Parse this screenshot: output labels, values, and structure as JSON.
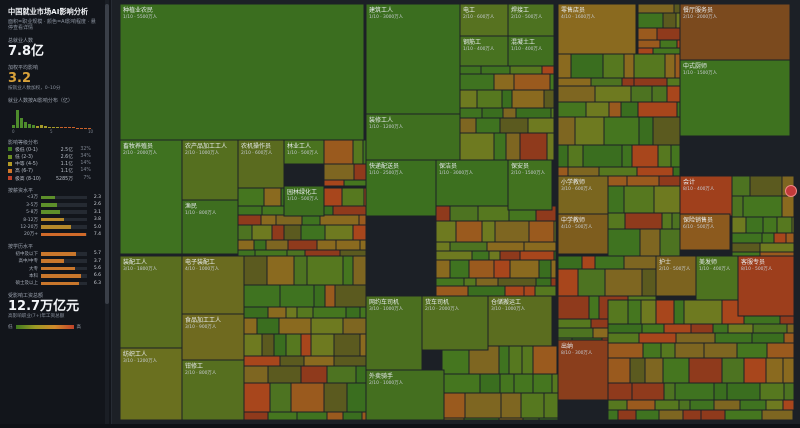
{
  "sidebar": {
    "title": "中国就业市场AI影响分析",
    "subtitle": "面积=职业规模 · 颜色=AI影响程度 · 悬停查看详情",
    "total_label": "总就业人数",
    "total_value": "7.8亿",
    "avg_label": "加权平均影响",
    "avg_value": "3.2",
    "avg_note": "按就业人数加权，0–10分",
    "hist_label": "就业人数按AI影响分布（亿）",
    "hist_ticks": [
      "0",
      "5",
      "10"
    ],
    "dist_label": "影响等级分布",
    "dist": [
      {
        "name": "极低 (0-1)",
        "count": "2.5亿",
        "pct": "32%",
        "color": "#3f7a1f"
      },
      {
        "name": "低 (2-3)",
        "count": "2.6亿",
        "pct": "34%",
        "color": "#6e8f22"
      },
      {
        "name": "中等 (4-5)",
        "count": "1.1亿",
        "pct": "14%",
        "color": "#b39a25"
      },
      {
        "name": "高 (6-7)",
        "count": "1.1亿",
        "pct": "14%",
        "color": "#d1772b"
      },
      {
        "name": "极高 (8-10)",
        "count": "5285万",
        "pct": "7%",
        "color": "#c0432a"
      }
    ],
    "salary_label": "按薪资水平",
    "salary": [
      {
        "label": "<3万",
        "value": "2.3",
        "frac": 0.3
      },
      {
        "label": "3-5万",
        "value": "2.6",
        "frac": 0.34
      },
      {
        "label": "5-8万",
        "value": "3.1",
        "frac": 0.41
      },
      {
        "label": "8-12万",
        "value": "3.8",
        "frac": 0.5
      },
      {
        "label": "12-20万",
        "value": "5.0",
        "frac": 0.66
      },
      {
        "label": "20万+",
        "value": "7.4",
        "frac": 0.97
      }
    ],
    "edu_label": "按学历水平",
    "edu": [
      {
        "label": "初中及以下",
        "value": "5.7",
        "frac": 0.75
      },
      {
        "label": "高中/中专",
        "value": "3.7",
        "frac": 0.49
      },
      {
        "label": "大专",
        "value": "5.6",
        "frac": 0.74
      },
      {
        "label": "本科",
        "value": "6.6",
        "frac": 0.87
      },
      {
        "label": "硕士及以上",
        "value": "6.3",
        "frac": 0.83
      }
    ],
    "wage_label": "受影响工资总额",
    "wage_value": "12.7万亿元",
    "wage_note": "高影响职业(7+)年工资总额",
    "legend_low": "低",
    "legend_high": "高"
  },
  "chart_data": {
    "type": "treemap",
    "color_scale": [
      "#3f7a1f",
      "#9c9a24",
      "#d18a2b",
      "#c0432a"
    ],
    "cells": [
      {
        "name": "种植业农民",
        "info": "1/10 · 5500万人"
      },
      {
        "name": "畜牧养殖员",
        "info": "2/10 · 2000万人"
      },
      {
        "name": "农产品加工工人",
        "info": "2/10 · 1000万人"
      },
      {
        "name": "渔民",
        "info": "1/10 · 800万人"
      },
      {
        "name": "农机操作员",
        "info": "2/10 · 600万人"
      },
      {
        "name": "林业工人",
        "info": "1/10 · 500万人"
      },
      {
        "name": "园林绿化工",
        "info": "1/10 · 500万人"
      },
      {
        "name": "建筑工人",
        "info": "1/10 · 3000万人"
      },
      {
        "name": "装修工人",
        "info": "1/10 · 1200万人"
      },
      {
        "name": "电工",
        "info": "2/10 · 600万人"
      },
      {
        "name": "焊接工",
        "info": "2/10 · 500万人"
      },
      {
        "name": "钢筋工",
        "info": "1/10 · 400万人"
      },
      {
        "name": "混凝土工",
        "info": "1/10 · 400万人"
      },
      {
        "name": "水暖工",
        "info": "1/10 · 350万人"
      },
      {
        "name": "快递配送员",
        "info": "1/10 · 2500万人"
      },
      {
        "name": "保洁员",
        "info": "1/10 · 3000万人"
      },
      {
        "name": "保安员",
        "info": "2/10 · 1500万人"
      },
      {
        "name": "装配工人",
        "info": "3/10 · 1800万人"
      },
      {
        "name": "电子装配工",
        "info": "4/10 · 1000万人"
      },
      {
        "name": "纺织工人",
        "info": "3/10 · 1200万人"
      },
      {
        "name": "食品加工工人",
        "info": "3/10 · 900万人"
      },
      {
        "name": "钳修工",
        "info": "2/10 · 800万人"
      },
      {
        "name": "网约车司机",
        "info": "3/10 · 1000万人"
      },
      {
        "name": "货车司机",
        "info": "2/10 · 2000万人"
      },
      {
        "name": "外卖骑手",
        "info": "2/10 · 1000万人"
      },
      {
        "name": "仓储搬运工",
        "info": "3/10 · 1000万人"
      },
      {
        "name": "零售店员",
        "info": "4/10 · 1600万人"
      },
      {
        "name": "餐厅服务员",
        "info": "2/10 · 2000万人"
      },
      {
        "name": "中式厨师",
        "info": "1/10 · 1500万人"
      },
      {
        "name": "小学教师",
        "info": "3/10 · 600万人"
      },
      {
        "name": "中学教师",
        "info": "4/10 · 500万人"
      },
      {
        "name": "会计",
        "info": "8/10 · 400万人"
      },
      {
        "name": "保险销售员",
        "info": "6/10 · 500万人"
      },
      {
        "name": "护士",
        "info": "2/10 · 500万人"
      },
      {
        "name": "美发师",
        "info": "1/10 · 400万人"
      },
      {
        "name": "客服专员",
        "info": "8/10 · 500万人"
      },
      {
        "name": "出纳",
        "info": "8/10 · 300万人"
      }
    ]
  }
}
